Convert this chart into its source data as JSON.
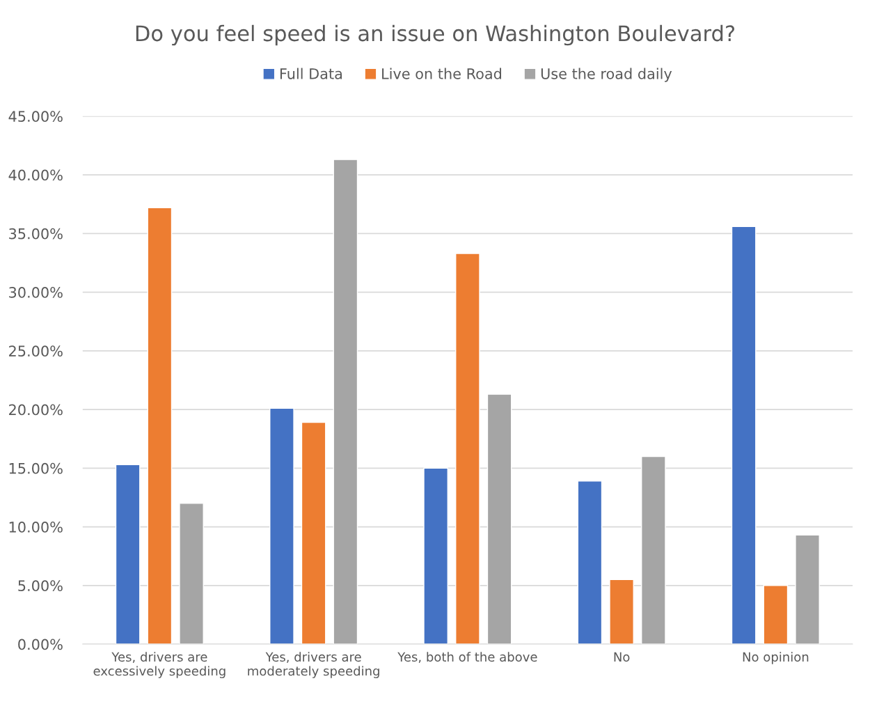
{
  "chart_data": {
    "type": "bar",
    "title": "Do you feel speed is an issue on Washington Boulevard?",
    "categories": [
      "Yes, drivers are\nexcessively speeding",
      "Yes, drivers are\nmoderately speeding",
      "Yes, both of the above",
      "No",
      "No opinion"
    ],
    "series": [
      {
        "name": "Full Data",
        "color": "#4472c4",
        "values": [
          15.3,
          20.1,
          15.0,
          13.9,
          35.6
        ]
      },
      {
        "name": "Live on the Road",
        "color": "#ed7d31",
        "values": [
          37.2,
          18.9,
          33.3,
          5.5,
          5.0
        ]
      },
      {
        "name": "Use the road daily",
        "color": "#a5a5a5",
        "values": [
          12.0,
          41.3,
          21.3,
          16.0,
          9.3
        ]
      }
    ],
    "ylim": [
      0,
      45
    ],
    "yticks": [
      {
        "value": 0,
        "label": "0.00%"
      },
      {
        "value": 5,
        "label": "5.00%"
      },
      {
        "value": 10,
        "label": "10.00%"
      },
      {
        "value": 15,
        "label": "15.00%"
      },
      {
        "value": 20,
        "label": "20.00%"
      },
      {
        "value": 25,
        "label": "25.00%"
      },
      {
        "value": 30,
        "label": "30.00%"
      },
      {
        "value": 35,
        "label": "35.00%"
      },
      {
        "value": 40,
        "label": "40.00%"
      },
      {
        "value": 45,
        "label": "45.00%"
      }
    ],
    "grid": "y",
    "legend": "top"
  }
}
